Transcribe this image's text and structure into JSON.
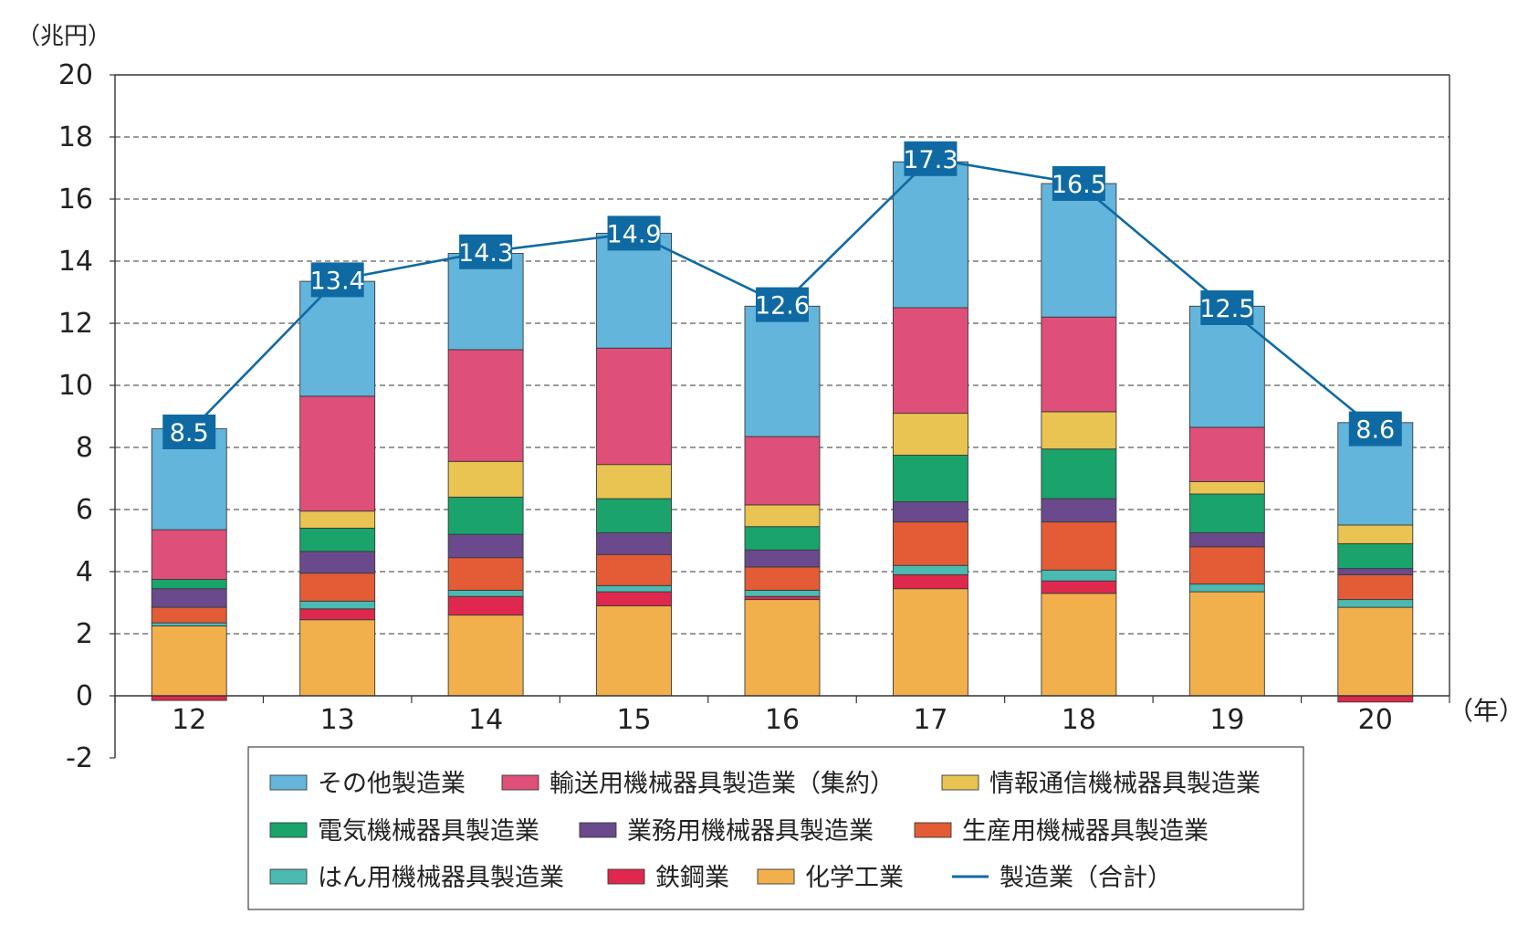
{
  "chart_data": {
    "type": "bar",
    "stacked": true,
    "y_unit_label": "（兆円）",
    "x_unit_label": "（年）",
    "categories": [
      "12",
      "13",
      "14",
      "15",
      "16",
      "17",
      "18",
      "19",
      "20"
    ],
    "ylim": [
      -2,
      20
    ],
    "yticks": [
      20,
      18,
      16,
      14,
      12,
      10,
      8,
      6,
      4,
      2,
      0,
      -2
    ],
    "grid": "dashed horizontal",
    "legend_position": "bottom",
    "series": [
      {
        "name": "化学工業",
        "color": "#f1b04c",
        "values": [
          2.25,
          2.45,
          2.6,
          2.9,
          3.1,
          3.45,
          3.3,
          3.35,
          2.85
        ]
      },
      {
        "name": "鉄鋼業",
        "color": "#e0284f",
        "values": [
          -0.15,
          0.35,
          0.6,
          0.45,
          0.1,
          0.45,
          0.4,
          0.0,
          -0.2
        ]
      },
      {
        "name": "はん用機械器具製造業",
        "color": "#4bbab0",
        "values": [
          0.1,
          0.25,
          0.2,
          0.2,
          0.2,
          0.3,
          0.35,
          0.25,
          0.25
        ]
      },
      {
        "name": "生産用機械器具製造業",
        "color": "#e35c36",
        "values": [
          0.5,
          0.9,
          1.05,
          1.0,
          0.75,
          1.4,
          1.55,
          1.2,
          0.8
        ]
      },
      {
        "name": "業務用機械器具製造業",
        "color": "#6a4a8c",
        "values": [
          0.6,
          0.7,
          0.75,
          0.7,
          0.55,
          0.65,
          0.75,
          0.45,
          0.2
        ]
      },
      {
        "name": "電気機械器具製造業",
        "color": "#1aa36b",
        "values": [
          0.3,
          0.75,
          1.2,
          1.1,
          0.75,
          1.5,
          1.6,
          1.25,
          0.8
        ]
      },
      {
        "name": "情報通信機械器具製造業",
        "color": "#e9c452",
        "values": [
          0.0,
          0.55,
          1.15,
          1.1,
          0.7,
          1.35,
          1.2,
          0.4,
          0.6
        ]
      },
      {
        "name": "輸送用機械器具製造業（集約）",
        "color": "#de4f79",
        "values": [
          1.6,
          3.7,
          3.6,
          3.75,
          2.2,
          3.4,
          3.05,
          1.75,
          0.0
        ]
      },
      {
        "name": "その他製造業",
        "color": "#63b5db",
        "values": [
          3.25,
          3.7,
          3.1,
          3.7,
          4.2,
          4.7,
          4.3,
          3.9,
          3.3
        ]
      }
    ],
    "total_line": {
      "name": "製造業（合計）",
      "color": "#0f6aa3",
      "values": [
        8.5,
        13.4,
        14.3,
        14.9,
        12.6,
        17.3,
        16.5,
        12.5,
        8.6
      ],
      "labels": [
        "8.5",
        "13.4",
        "14.3",
        "14.9",
        "12.6",
        "17.3",
        "16.5",
        "12.5",
        "8.6"
      ]
    },
    "legend_order": [
      "その他製造業",
      "輸送用機械器具製造業（集約）",
      "情報通信機械器具製造業",
      "電気機械器具製造業",
      "業務用機械器具製造業",
      "生産用機械器具製造業",
      "はん用機械器具製造業",
      "鉄鋼業",
      "化学工業",
      "製造業（合計）"
    ]
  }
}
